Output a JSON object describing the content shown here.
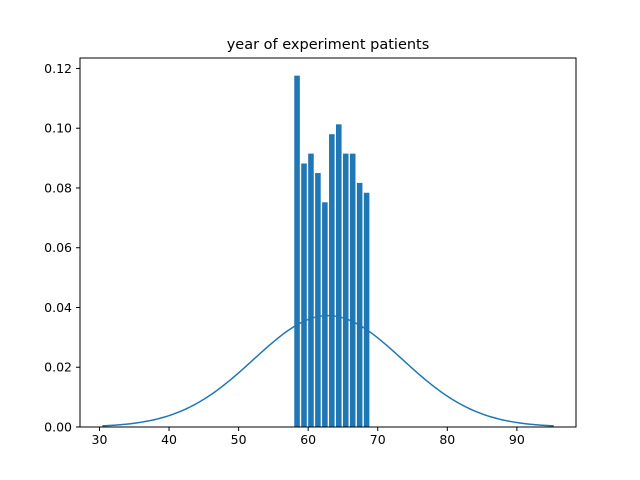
{
  "chart_data": {
    "type": "bar",
    "title": "year of experiment patients",
    "xlabel": "",
    "ylabel": "",
    "xlim": [
      27.2,
      98.5
    ],
    "ylim": [
      0,
      0.1235
    ],
    "xticks": [
      30,
      40,
      50,
      60,
      70,
      80,
      90
    ],
    "yticks": [
      0.0,
      0.02,
      0.04,
      0.06,
      0.08,
      0.1,
      0.12
    ],
    "grid": false,
    "legend": "none",
    "bar_color": "#1f77b4",
    "line_color": "#1f77b4",
    "bar_width": 0.8,
    "bars": {
      "x": [
        58.4,
        59.4,
        60.4,
        61.4,
        62.4,
        63.4,
        64.4,
        65.4,
        66.4,
        67.4,
        68.4
      ],
      "values": [
        0.1176,
        0.0882,
        0.0915,
        0.085,
        0.0752,
        0.098,
        0.1013,
        0.0915,
        0.0915,
        0.0817,
        0.0784
      ]
    },
    "line": {
      "kind": "normal-pdf",
      "mean": 62.85,
      "sd": 10.7,
      "x_range": [
        30.4,
        95.3
      ]
    }
  }
}
